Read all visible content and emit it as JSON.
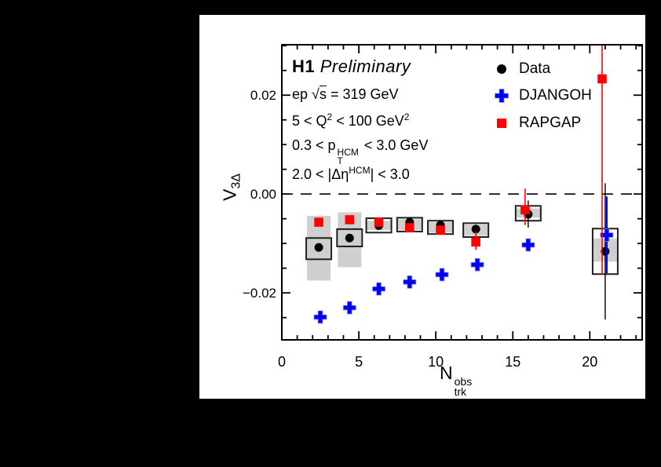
{
  "page": {
    "background": "#000000",
    "canvas_background": "#ffffff"
  },
  "plot": {
    "title": {
      "h1": "H1",
      "preliminary": "Preliminary"
    },
    "conditions": {
      "energy": {
        "prefix": "ep",
        "sqrt": "√",
        "arg": "s",
        "rest": "= 319 GeV"
      },
      "q2": {
        "a": "5 < Q",
        "sup1": "2",
        "b": " < 100 GeV",
        "sup2": "2"
      },
      "pt": {
        "a": "0.3 < p",
        "sup": "HCM",
        "sub": "T",
        "b": "< 3.0 GeV"
      },
      "eta": {
        "a": "2.0 < |Δη",
        "sup": "HCM",
        "b": "| < 3.0"
      }
    },
    "legend": {
      "position": "top-right",
      "entries": [
        {
          "label": "Data",
          "marker": "circle",
          "color": "#000000"
        },
        {
          "label": "DJANGOH",
          "marker": "plus",
          "color": "#0000f0"
        },
        {
          "label": "RAPGAP",
          "marker": "square",
          "color": "#ff0000"
        }
      ]
    },
    "xlabel": {
      "main": "N",
      "sup": "obs",
      "sub": "trk"
    },
    "ylabel": {
      "main": "V",
      "sub": "3Δ"
    }
  },
  "chart_data": {
    "type": "scatter",
    "title": "H1 Preliminary",
    "xlabel": "N_trk^obs",
    "ylabel": "V_3Delta",
    "xlim": [
      0,
      23.4
    ],
    "ylim": [
      -0.0295,
      0.0302
    ],
    "grid": false,
    "zero_line": {
      "y": 0.0,
      "style": "dashed",
      "color": "#000000"
    },
    "x_minor_step": 1,
    "y_minor_step": 0.005,
    "xticks": [
      {
        "v": 0,
        "label": "0"
      },
      {
        "v": 5,
        "label": "5"
      },
      {
        "v": 10,
        "label": "10"
      },
      {
        "v": 15,
        "label": "15"
      },
      {
        "v": 20,
        "label": "20"
      }
    ],
    "yticks": [
      {
        "v": 0.02,
        "label": "0.02"
      },
      {
        "v": 0.0,
        "label": "0.00"
      },
      {
        "v": -0.02,
        "label": "−0.02"
      }
    ],
    "band_color": "#cfcfcf",
    "box_color": "#1f1f1f",
    "series": [
      {
        "name": "Data",
        "marker": "circle",
        "color": "#000000",
        "points": [
          {
            "x": 2.4,
            "y": -0.0108,
            "box": [
              -0.0089,
              -0.0132
            ],
            "band": [
              -0.0044,
              -0.0175
            ]
          },
          {
            "x": 4.4,
            "y": -0.0089,
            "box": [
              -0.0071,
              -0.0106
            ],
            "band": [
              -0.0037,
              -0.0148
            ]
          },
          {
            "x": 6.3,
            "y": -0.0064,
            "box": [
              -0.0049,
              -0.0078
            ],
            "band": [
              -0.0054,
              -0.0073
            ]
          },
          {
            "x": 8.3,
            "y": -0.0057,
            "box": [
              -0.0048,
              -0.0076
            ],
            "band": [
              -0.0051,
              -0.0073
            ]
          },
          {
            "x": 10.3,
            "y": -0.0063,
            "box": [
              -0.0054,
              -0.0081
            ],
            "band": [
              -0.0057,
              -0.0078
            ]
          },
          {
            "x": 12.6,
            "y": -0.0071,
            "box": [
              -0.0059,
              -0.0087
            ],
            "band": [
              -0.0062,
              -0.0084
            ]
          },
          {
            "x": 16.0,
            "y": -0.0041,
            "box": [
              -0.0024,
              -0.0054
            ],
            "band": [
              -0.0029,
              -0.0048
            ],
            "stat": [
              -0.0013,
              -0.0068
            ]
          },
          {
            "x": 21.0,
            "y": -0.0116,
            "box": [
              -0.007,
              -0.0162
            ],
            "band": [
              -0.009,
              -0.0137
            ],
            "stat": [
              0.0022,
              -0.0254
            ]
          }
        ]
      },
      {
        "name": "DJANGOH",
        "marker": "plus",
        "color": "#0000f0",
        "points": [
          {
            "x": 2.5,
            "y": -0.0249
          },
          {
            "x": 4.4,
            "y": -0.023
          },
          {
            "x": 6.3,
            "y": -0.0192
          },
          {
            "x": 8.3,
            "y": -0.0178
          },
          {
            "x": 10.4,
            "y": -0.0163
          },
          {
            "x": 12.7,
            "y": -0.0143
          },
          {
            "x": 16.0,
            "y": -0.0103,
            "stat": [
              -0.0092,
              -0.0113
            ]
          },
          {
            "x": 21.1,
            "y": -0.0083,
            "stat": [
              -0.0005,
              -0.016
            ]
          }
        ]
      },
      {
        "name": "RAPGAP",
        "marker": "square",
        "color": "#ff0000",
        "points": [
          {
            "x": 2.4,
            "y": -0.0057
          },
          {
            "x": 4.4,
            "y": -0.0052
          },
          {
            "x": 6.3,
            "y": -0.0057
          },
          {
            "x": 8.3,
            "y": -0.0068
          },
          {
            "x": 10.3,
            "y": -0.0073
          },
          {
            "x": 12.6,
            "y": -0.0097,
            "stat": [
              -0.0076,
              -0.0113
            ]
          },
          {
            "x": 15.8,
            "y": -0.0032,
            "stat": [
              0.0011,
              -0.0063
            ]
          },
          {
            "x": 20.8,
            "y": 0.0233,
            "stat": [
              0.0302,
              -0.0163
            ]
          }
        ]
      }
    ]
  }
}
